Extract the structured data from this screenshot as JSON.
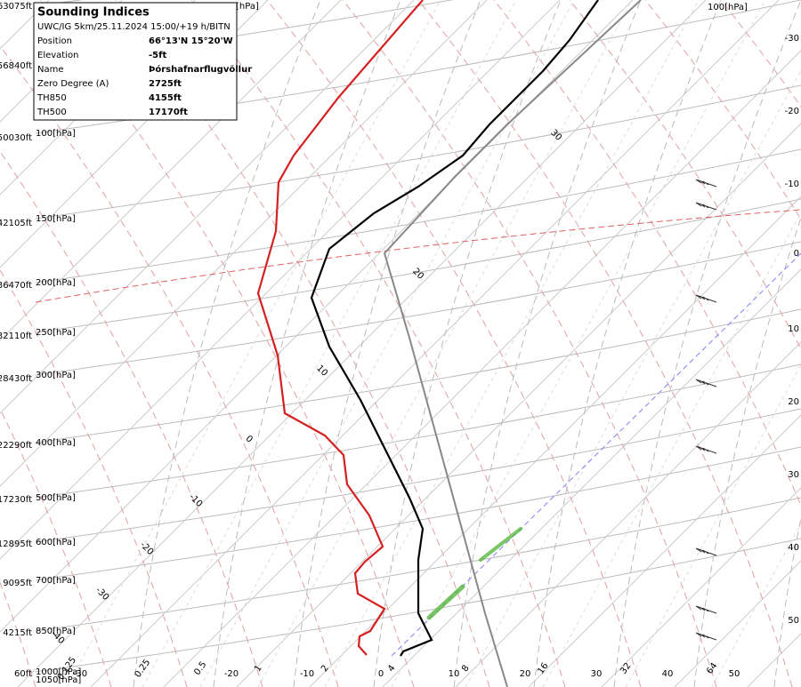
{
  "info": {
    "title": "Sounding Indices",
    "subtitle": "UWC/IG 5km/25.11.2024 15:00/+19 h/BITN",
    "rows": [
      [
        "Position",
        "66°13'N 15°20'W"
      ],
      [
        "Elevation",
        "-5ft"
      ],
      [
        "Name",
        "Þórshafnarflugvöllur"
      ],
      [
        "Zero Degree (A)",
        "2725ft"
      ],
      [
        "TH850",
        "4155ft"
      ],
      [
        "TH500",
        "17170ft"
      ]
    ]
  },
  "left_axis": {
    "heights": [
      "63075ft",
      "56840ft",
      "50030ft",
      "42105ft",
      "36470ft",
      "32110ft",
      "28430ft",
      "22290ft",
      "17230ft",
      "12895ft",
      "9095ft",
      "4215ft",
      "60ft"
    ],
    "pressures": [
      "[hPa]",
      "100[hPa]",
      "150[hPa]",
      "200[hPa]",
      "250[hPa]",
      "300[hPa]",
      "400[hPa]",
      "500[hPa]",
      "600[hPa]",
      "700[hPa]",
      "850[hPa]",
      "1000[hPa]",
      "1050[hPa]"
    ]
  },
  "right_axis": {
    "top_label": "100[hPa]",
    "labels": [
      "-30",
      "-20",
      "-10",
      "0",
      "10",
      "20",
      "30",
      "40",
      "50"
    ]
  },
  "bottom_axis": {
    "mixing_ratio": [
      "0.125",
      "0.25",
      "0.5",
      "1",
      "2",
      "4",
      "8",
      "16",
      "32",
      "64"
    ],
    "temperatures": [
      "-30",
      "-20",
      "-10",
      "0",
      "10",
      "20",
      "30",
      "40",
      "50"
    ]
  },
  "isotherm_labels": [
    "30",
    "20",
    "10",
    "0",
    "-10",
    "-20",
    "-30",
    "-40"
  ]
}
